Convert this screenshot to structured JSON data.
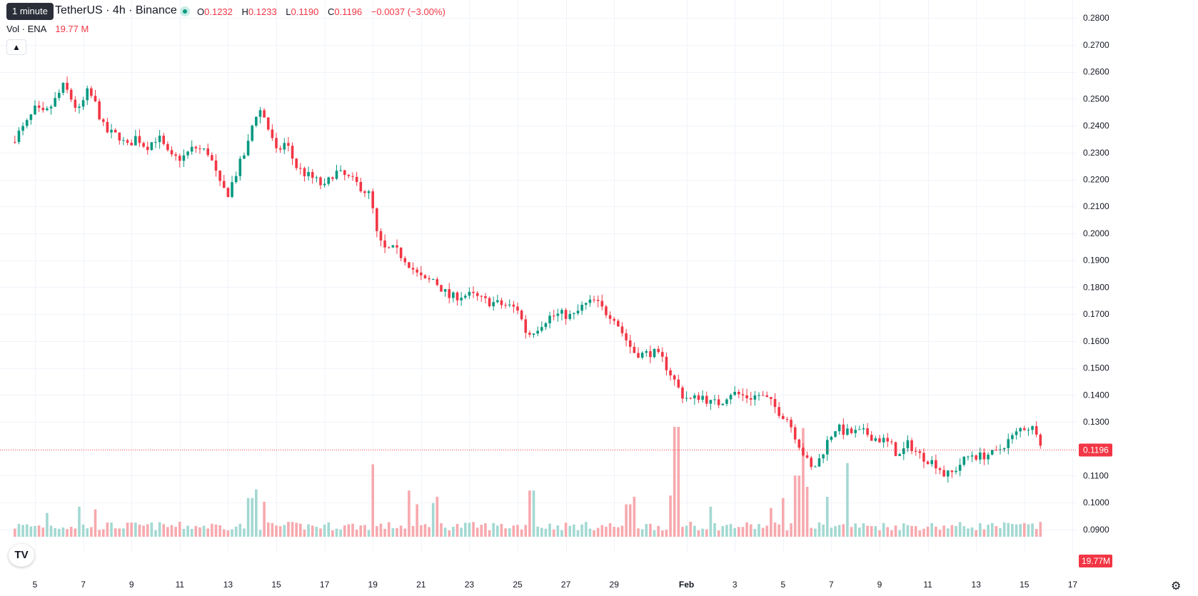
{
  "tooltip": "1 minute",
  "legend": {
    "symbol": "TetherUS · 4h · Binance",
    "open_label": "O",
    "open": "0.1232",
    "high_label": "H",
    "high": "0.1233",
    "low_label": "L",
    "low": "0.1190",
    "close_label": "C",
    "close": "0.1196",
    "change": "−0.0037 (−3.00%)",
    "volume_label": "Vol · ENA",
    "volume": "19.77 M"
  },
  "icons": {
    "collapse": "chevron-up-icon",
    "logo": "tradingview-logo-icon",
    "settings": "gear-icon"
  },
  "logo_text": "TV",
  "colors": {
    "up": "#089981",
    "down": "#f23645",
    "up_volume": "#a3d9d2",
    "down_volume": "#f7a9ae"
  },
  "chart_data": {
    "type": "candlestick",
    "interval": "4h",
    "price_axis": {
      "ticks": [
        "0.2800",
        "0.2700",
        "0.2600",
        "0.2500",
        "0.2400",
        "0.2300",
        "0.2200",
        "0.2100",
        "0.2000",
        "0.1900",
        "0.1800",
        "0.1700",
        "0.1600",
        "0.1500",
        "0.1400",
        "0.1300",
        "0.1100",
        "0.1000",
        "0.0900"
      ],
      "ylim": [
        0.0905,
        0.2835
      ]
    },
    "time_axis": {
      "ticks": [
        {
          "label": "5",
          "day": 5
        },
        {
          "label": "7",
          "day": 7
        },
        {
          "label": "9",
          "day": 9
        },
        {
          "label": "11",
          "day": 11
        },
        {
          "label": "13",
          "day": 13
        },
        {
          "label": "15",
          "day": 15
        },
        {
          "label": "17",
          "day": 17
        },
        {
          "label": "19",
          "day": 19
        },
        {
          "label": "21",
          "day": 21
        },
        {
          "label": "23",
          "day": 23
        },
        {
          "label": "25",
          "day": 25
        },
        {
          "label": "27",
          "day": 27
        },
        {
          "label": "29",
          "day": 29
        },
        {
          "label": "Feb",
          "day": 32,
          "bold": true
        },
        {
          "label": "3",
          "day": 34
        },
        {
          "label": "5",
          "day": 36
        },
        {
          "label": "7",
          "day": 38
        },
        {
          "label": "9",
          "day": 40
        },
        {
          "label": "11",
          "day": 42
        },
        {
          "label": "13",
          "day": 44
        },
        {
          "label": "15",
          "day": 46
        },
        {
          "label": "17",
          "day": 48
        }
      ]
    },
    "last_price": "0.1196",
    "last_volume": "19.77M",
    "price_path": [
      [
        4.0,
        0.234
      ],
      [
        4.6,
        0.24
      ],
      [
        5.0,
        0.246
      ],
      [
        5.4,
        0.244
      ],
      [
        5.8,
        0.249
      ],
      [
        6.2,
        0.255
      ],
      [
        6.5,
        0.25
      ],
      [
        6.8,
        0.245
      ],
      [
        7.2,
        0.253
      ],
      [
        7.5,
        0.248
      ],
      [
        7.9,
        0.238
      ],
      [
        8.5,
        0.236
      ],
      [
        8.8,
        0.232
      ],
      [
        9.2,
        0.236
      ],
      [
        9.6,
        0.232
      ],
      [
        10.1,
        0.236
      ],
      [
        10.6,
        0.228
      ],
      [
        11.1,
        0.228
      ],
      [
        11.6,
        0.232
      ],
      [
        12.2,
        0.23
      ],
      [
        12.7,
        0.217
      ],
      [
        13.0,
        0.215
      ],
      [
        13.5,
        0.226
      ],
      [
        13.8,
        0.232
      ],
      [
        14.1,
        0.244
      ],
      [
        14.4,
        0.246
      ],
      [
        14.7,
        0.238
      ],
      [
        15.0,
        0.23
      ],
      [
        15.4,
        0.234
      ],
      [
        15.8,
        0.225
      ],
      [
        16.2,
        0.222
      ],
      [
        16.6,
        0.22
      ],
      [
        17.0,
        0.217
      ],
      [
        17.4,
        0.223
      ],
      [
        17.9,
        0.221
      ],
      [
        18.4,
        0.218
      ],
      [
        18.9,
        0.214
      ],
      [
        19.2,
        0.198
      ],
      [
        19.5,
        0.194
      ],
      [
        19.9,
        0.194
      ],
      [
        20.4,
        0.19
      ],
      [
        20.8,
        0.185
      ],
      [
        21.2,
        0.182
      ],
      [
        21.5,
        0.183
      ],
      [
        21.8,
        0.18
      ],
      [
        22.2,
        0.176
      ],
      [
        22.6,
        0.177
      ],
      [
        23.1,
        0.177
      ],
      [
        23.6,
        0.175
      ],
      [
        24.1,
        0.174
      ],
      [
        24.6,
        0.173
      ],
      [
        25.0,
        0.172
      ],
      [
        25.4,
        0.162
      ],
      [
        25.8,
        0.165
      ],
      [
        26.3,
        0.169
      ],
      [
        26.8,
        0.17
      ],
      [
        27.3,
        0.169
      ],
      [
        27.7,
        0.173
      ],
      [
        28.2,
        0.175
      ],
      [
        28.6,
        0.171
      ],
      [
        29.0,
        0.169
      ],
      [
        29.4,
        0.162
      ],
      [
        29.8,
        0.156
      ],
      [
        30.2,
        0.155
      ],
      [
        30.6,
        0.156
      ],
      [
        31.0,
        0.153
      ],
      [
        31.4,
        0.147
      ],
      [
        31.8,
        0.14
      ],
      [
        32.2,
        0.138
      ],
      [
        32.6,
        0.14
      ],
      [
        33.0,
        0.137
      ],
      [
        33.4,
        0.137
      ],
      [
        33.8,
        0.141
      ],
      [
        34.2,
        0.14
      ],
      [
        34.6,
        0.139
      ],
      [
        35.0,
        0.14
      ],
      [
        35.4,
        0.138
      ],
      [
        35.8,
        0.134
      ],
      [
        36.2,
        0.131
      ],
      [
        36.6,
        0.123
      ],
      [
        36.9,
        0.117
      ],
      [
        37.2,
        0.112
      ],
      [
        37.5,
        0.116
      ],
      [
        37.9,
        0.124
      ],
      [
        38.2,
        0.128
      ],
      [
        38.6,
        0.126
      ],
      [
        39.0,
        0.126
      ],
      [
        39.4,
        0.126
      ],
      [
        39.8,
        0.124
      ],
      [
        40.2,
        0.123
      ],
      [
        40.5,
        0.121
      ],
      [
        40.8,
        0.117
      ],
      [
        41.2,
        0.122
      ],
      [
        41.6,
        0.118
      ],
      [
        42.0,
        0.116
      ],
      [
        42.4,
        0.114
      ],
      [
        42.7,
        0.11
      ],
      [
        43.0,
        0.111
      ],
      [
        43.4,
        0.115
      ],
      [
        43.8,
        0.118
      ],
      [
        44.1,
        0.117
      ],
      [
        44.5,
        0.118
      ],
      [
        44.8,
        0.118
      ],
      [
        45.2,
        0.122
      ],
      [
        45.6,
        0.125
      ],
      [
        45.9,
        0.128
      ],
      [
        46.2,
        0.128
      ],
      [
        46.5,
        0.127
      ],
      [
        46.7,
        0.122
      ],
      [
        46.8,
        0.1196
      ]
    ],
    "volume_peaks": [
      [
        5.5,
        0.19
      ],
      [
        6.9,
        0.24
      ],
      [
        7.5,
        0.22
      ],
      [
        13.9,
        0.31
      ],
      [
        14.1,
        0.38
      ],
      [
        14.5,
        0.28
      ],
      [
        19.0,
        0.58
      ],
      [
        20.5,
        0.37
      ],
      [
        20.8,
        0.26
      ],
      [
        21.5,
        0.27
      ],
      [
        21.7,
        0.32
      ],
      [
        25.6,
        0.37
      ],
      [
        29.6,
        0.26
      ],
      [
        29.8,
        0.32
      ],
      [
        31.4,
        0.33
      ],
      [
        31.6,
        0.88
      ],
      [
        32.2,
        0.12
      ],
      [
        33.0,
        0.24
      ],
      [
        35.5,
        0.23
      ],
      [
        36.0,
        0.31
      ],
      [
        36.5,
        0.43
      ],
      [
        36.6,
        0.49
      ],
      [
        36.8,
        0.87
      ],
      [
        37.0,
        0.4
      ],
      [
        37.9,
        0.32
      ],
      [
        38.6,
        0.59
      ]
    ]
  }
}
